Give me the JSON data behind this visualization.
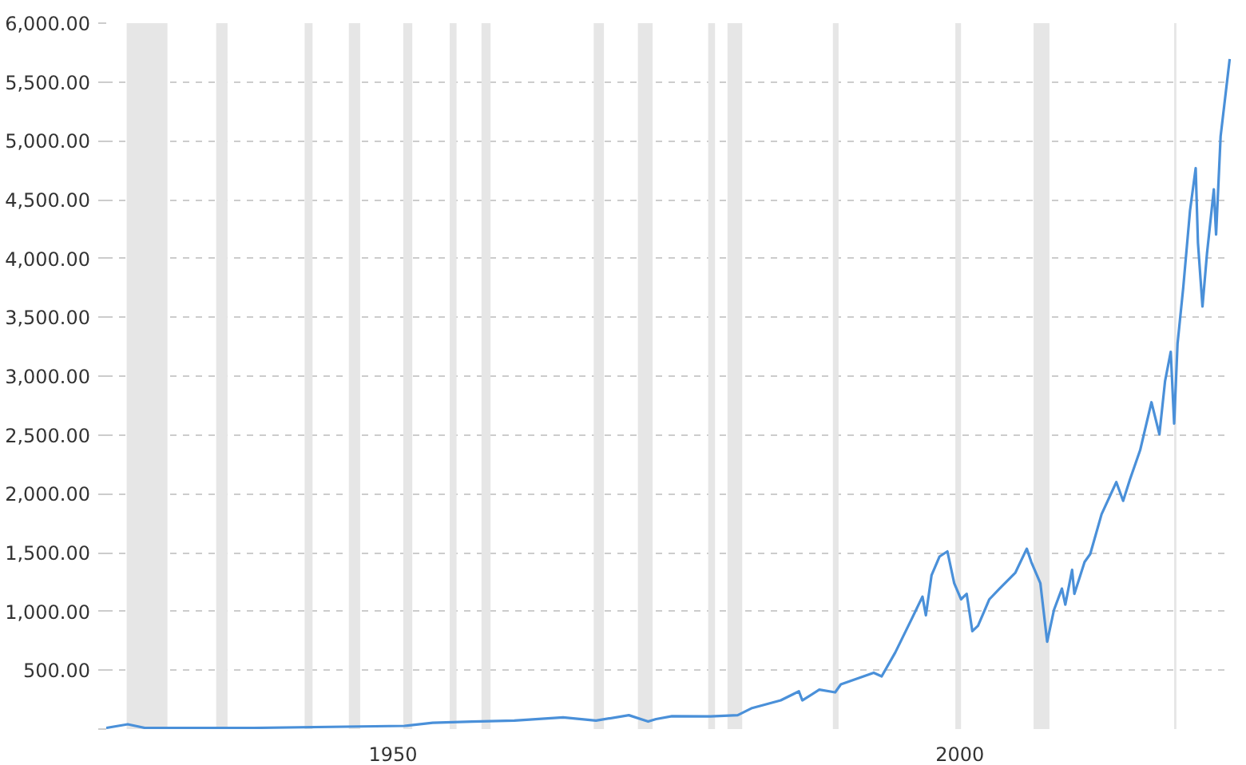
{
  "chart_data": {
    "type": "line",
    "x": [
      1924.7,
      1926.6,
      1928.1,
      1937.7,
      1951.0,
      1953.5,
      1957.0,
      1960.7,
      1965.0,
      1967.9,
      1970.8,
      1972.5,
      1973.2,
      1974.6,
      1978.0,
      1980.4,
      1981.6,
      1984.2,
      1985.8,
      1986.1,
      1987.6,
      1989.0,
      1989.5,
      1992.4,
      1993.1,
      1994.3,
      1995.8,
      1996.7,
      1997.0,
      1997.5,
      1998.2,
      1998.9,
      1999.5,
      2000.1,
      2000.6,
      2001.1,
      2001.6,
      2002.6,
      2003.5,
      2004.9,
      2005.9,
      2006.3,
      2007.1,
      2007.7,
      2008.3,
      2009.0,
      2009.3,
      2009.9,
      2010.1,
      2011.0,
      2011.5,
      2012.5,
      2013.8,
      2014.4,
      2015.0,
      2015.9,
      2016.9,
      2017.6,
      2018.1,
      2018.6,
      2018.9,
      2019.2,
      2019.7,
      2020.3,
      2020.8,
      2021.0,
      2021.4,
      2021.8,
      2022.4,
      2022.6,
      2023.0,
      2023.8
    ],
    "series": [
      {
        "color": "#4a90d9",
        "values": [
          10,
          41,
          10,
          10,
          27,
          54,
          64,
          72,
          99,
          72,
          118,
          64,
          85,
          109,
          108,
          118,
          176,
          244,
          321,
          244,
          335,
          312,
          380,
          479,
          448,
          651,
          946,
          1126,
          967,
          1307,
          1466,
          1510,
          1239,
          1103,
          1149,
          832,
          878,
          1103,
          1194,
          1330,
          1533,
          1420,
          1239,
          742,
          1013,
          1194,
          1058,
          1353,
          1149,
          1420,
          1488,
          1827,
          2099,
          1940,
          2121,
          2370,
          2778,
          2506,
          2958,
          3207,
          2596,
          3275,
          3749,
          4406,
          4767,
          4135,
          3592,
          4044,
          4587,
          4203,
          5039,
          5695
        ]
      }
    ],
    "xlim": [
      1924.7,
      2023.9
    ],
    "xticks": [
      1950,
      2000
    ],
    "ylim": [
      0,
      6000
    ],
    "yticks": [
      {
        "value": 0,
        "label": null
      },
      {
        "value": 500,
        "label": "500.00"
      },
      {
        "value": 1000,
        "label": "1,000.00"
      },
      {
        "value": 1500,
        "label": "1,500.00"
      },
      {
        "value": 2000,
        "label": "2,000.00"
      },
      {
        "value": 2500,
        "label": "2,500.00"
      },
      {
        "value": 3000,
        "label": "3,000.00"
      },
      {
        "value": 3500,
        "label": "3,500.00"
      },
      {
        "value": 4000,
        "label": "4,000.00"
      },
      {
        "value": 4500,
        "label": "4,500.00"
      },
      {
        "value": 5000,
        "label": "5,000.00"
      },
      {
        "value": 5500,
        "label": "5,500.00"
      },
      {
        "value": 6000,
        "label": "6,000.00"
      }
    ],
    "grid": "y",
    "bands": [
      {
        "axis": "x",
        "from": 1926.5,
        "to": 1930.1,
        "color": "#e6e6e6"
      },
      {
        "axis": "x",
        "from": 1934.4,
        "to": 1935.4,
        "color": "#e6e6e6"
      },
      {
        "axis": "x",
        "from": 1942.2,
        "to": 1942.9,
        "color": "#e6e6e6"
      },
      {
        "axis": "x",
        "from": 1946.1,
        "to": 1947.1,
        "color": "#e6e6e6"
      },
      {
        "axis": "x",
        "from": 1950.9,
        "to": 1951.7,
        "color": "#e6e6e6"
      },
      {
        "axis": "x",
        "from": 1955.0,
        "to": 1955.6,
        "color": "#e6e6e6"
      },
      {
        "axis": "x",
        "from": 1957.8,
        "to": 1958.6,
        "color": "#e6e6e6"
      },
      {
        "axis": "x",
        "from": 1967.7,
        "to": 1968.6,
        "color": "#e6e6e6"
      },
      {
        "axis": "x",
        "from": 1971.6,
        "to": 1972.9,
        "color": "#e6e6e6"
      },
      {
        "axis": "x",
        "from": 1977.8,
        "to": 1978.4,
        "color": "#e6e6e6"
      },
      {
        "axis": "x",
        "from": 1979.5,
        "to": 1980.8,
        "color": "#e6e6e6"
      },
      {
        "axis": "x",
        "from": 1988.8,
        "to": 1989.3,
        "color": "#e6e6e6"
      },
      {
        "axis": "x",
        "from": 1999.6,
        "to": 2000.1,
        "color": "#e6e6e6"
      },
      {
        "axis": "x",
        "from": 2006.5,
        "to": 2007.9,
        "color": "#e6e6e6"
      },
      {
        "axis": "x",
        "from": 2018.9,
        "to": 2019.1,
        "color": "#e6e6e6"
      }
    ]
  }
}
